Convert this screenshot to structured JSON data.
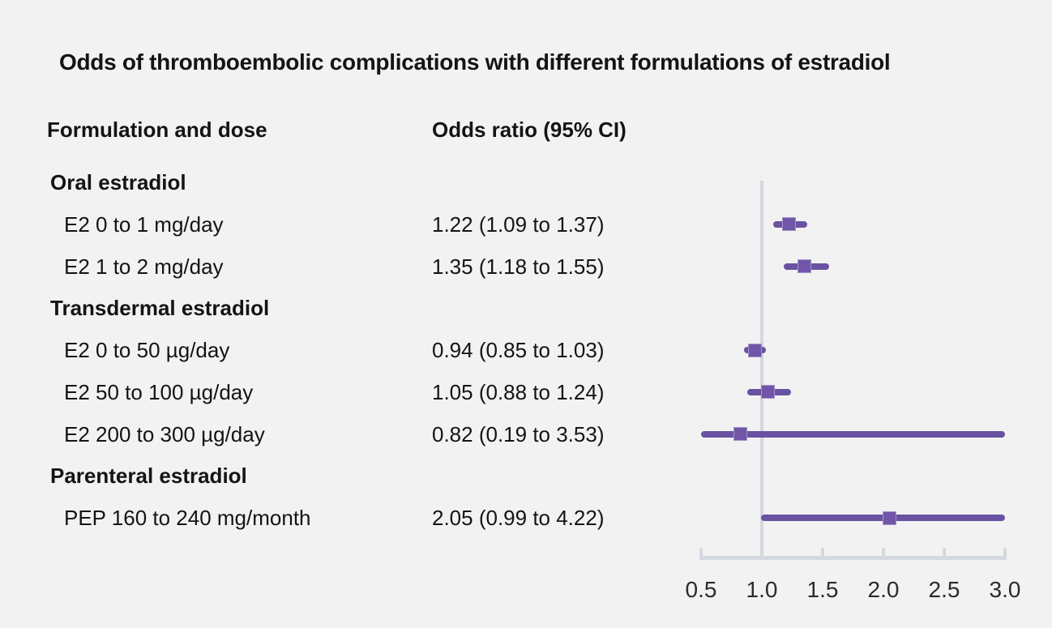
{
  "title": "Odds of thromboembolic complications with different formulations of estradiol",
  "columns": {
    "left_header": "Formulation and dose",
    "right_header": "Odds ratio (95% CI)"
  },
  "colors": {
    "marker_line": "#6a52a2",
    "marker_square": "#7156a8",
    "marker_square_border": "#a394cd",
    "axis": "#d4d9e0",
    "background": "#f2f2f2",
    "text": "#141414"
  },
  "chart_data": {
    "type": "forest",
    "title": "Odds of thromboembolic complications with different formulations of estradiol",
    "x_axis": {
      "ticks": [
        "0.5",
        "1.0",
        "1.5",
        "2.0",
        "2.5",
        "3.0"
      ],
      "tick_values": [
        0.5,
        1.0,
        1.5,
        2.0,
        2.5,
        3.0
      ],
      "xlim": [
        0.5,
        3.0
      ],
      "reference_line": 1.0,
      "scale": "linear"
    },
    "rows": [
      {
        "kind": "section",
        "label": "Oral estradiol"
      },
      {
        "kind": "item",
        "label": "E2 0 to 1 mg/day",
        "value_text": "1.22 (1.09 to 1.37)",
        "or": 1.22,
        "ci_low": 1.09,
        "ci_high": 1.37
      },
      {
        "kind": "item",
        "label": "E2 1 to 2 mg/day",
        "value_text": "1.35 (1.18 to 1.55)",
        "or": 1.35,
        "ci_low": 1.18,
        "ci_high": 1.55
      },
      {
        "kind": "section",
        "label": "Transdermal estradiol"
      },
      {
        "kind": "item",
        "label": "E2 0 to 50 µg/day",
        "value_text": "0.94 (0.85 to 1.03)",
        "or": 0.94,
        "ci_low": 0.85,
        "ci_high": 1.03
      },
      {
        "kind": "item",
        "label": "E2 50 to 100 µg/day",
        "value_text": "1.05 (0.88 to 1.24)",
        "or": 1.05,
        "ci_low": 0.88,
        "ci_high": 1.24
      },
      {
        "kind": "item",
        "label": "E2 200 to 300 µg/day",
        "value_text": "0.82 (0.19 to 3.53)",
        "or": 0.82,
        "ci_low": 0.19,
        "ci_high": 3.53
      },
      {
        "kind": "section",
        "label": "Parenteral estradiol"
      },
      {
        "kind": "item",
        "label": "PEP 160 to 240 mg/month",
        "value_text": "2.05 (0.99 to 4.22)",
        "or": 2.05,
        "ci_low": 0.99,
        "ci_high": 4.22
      }
    ]
  }
}
